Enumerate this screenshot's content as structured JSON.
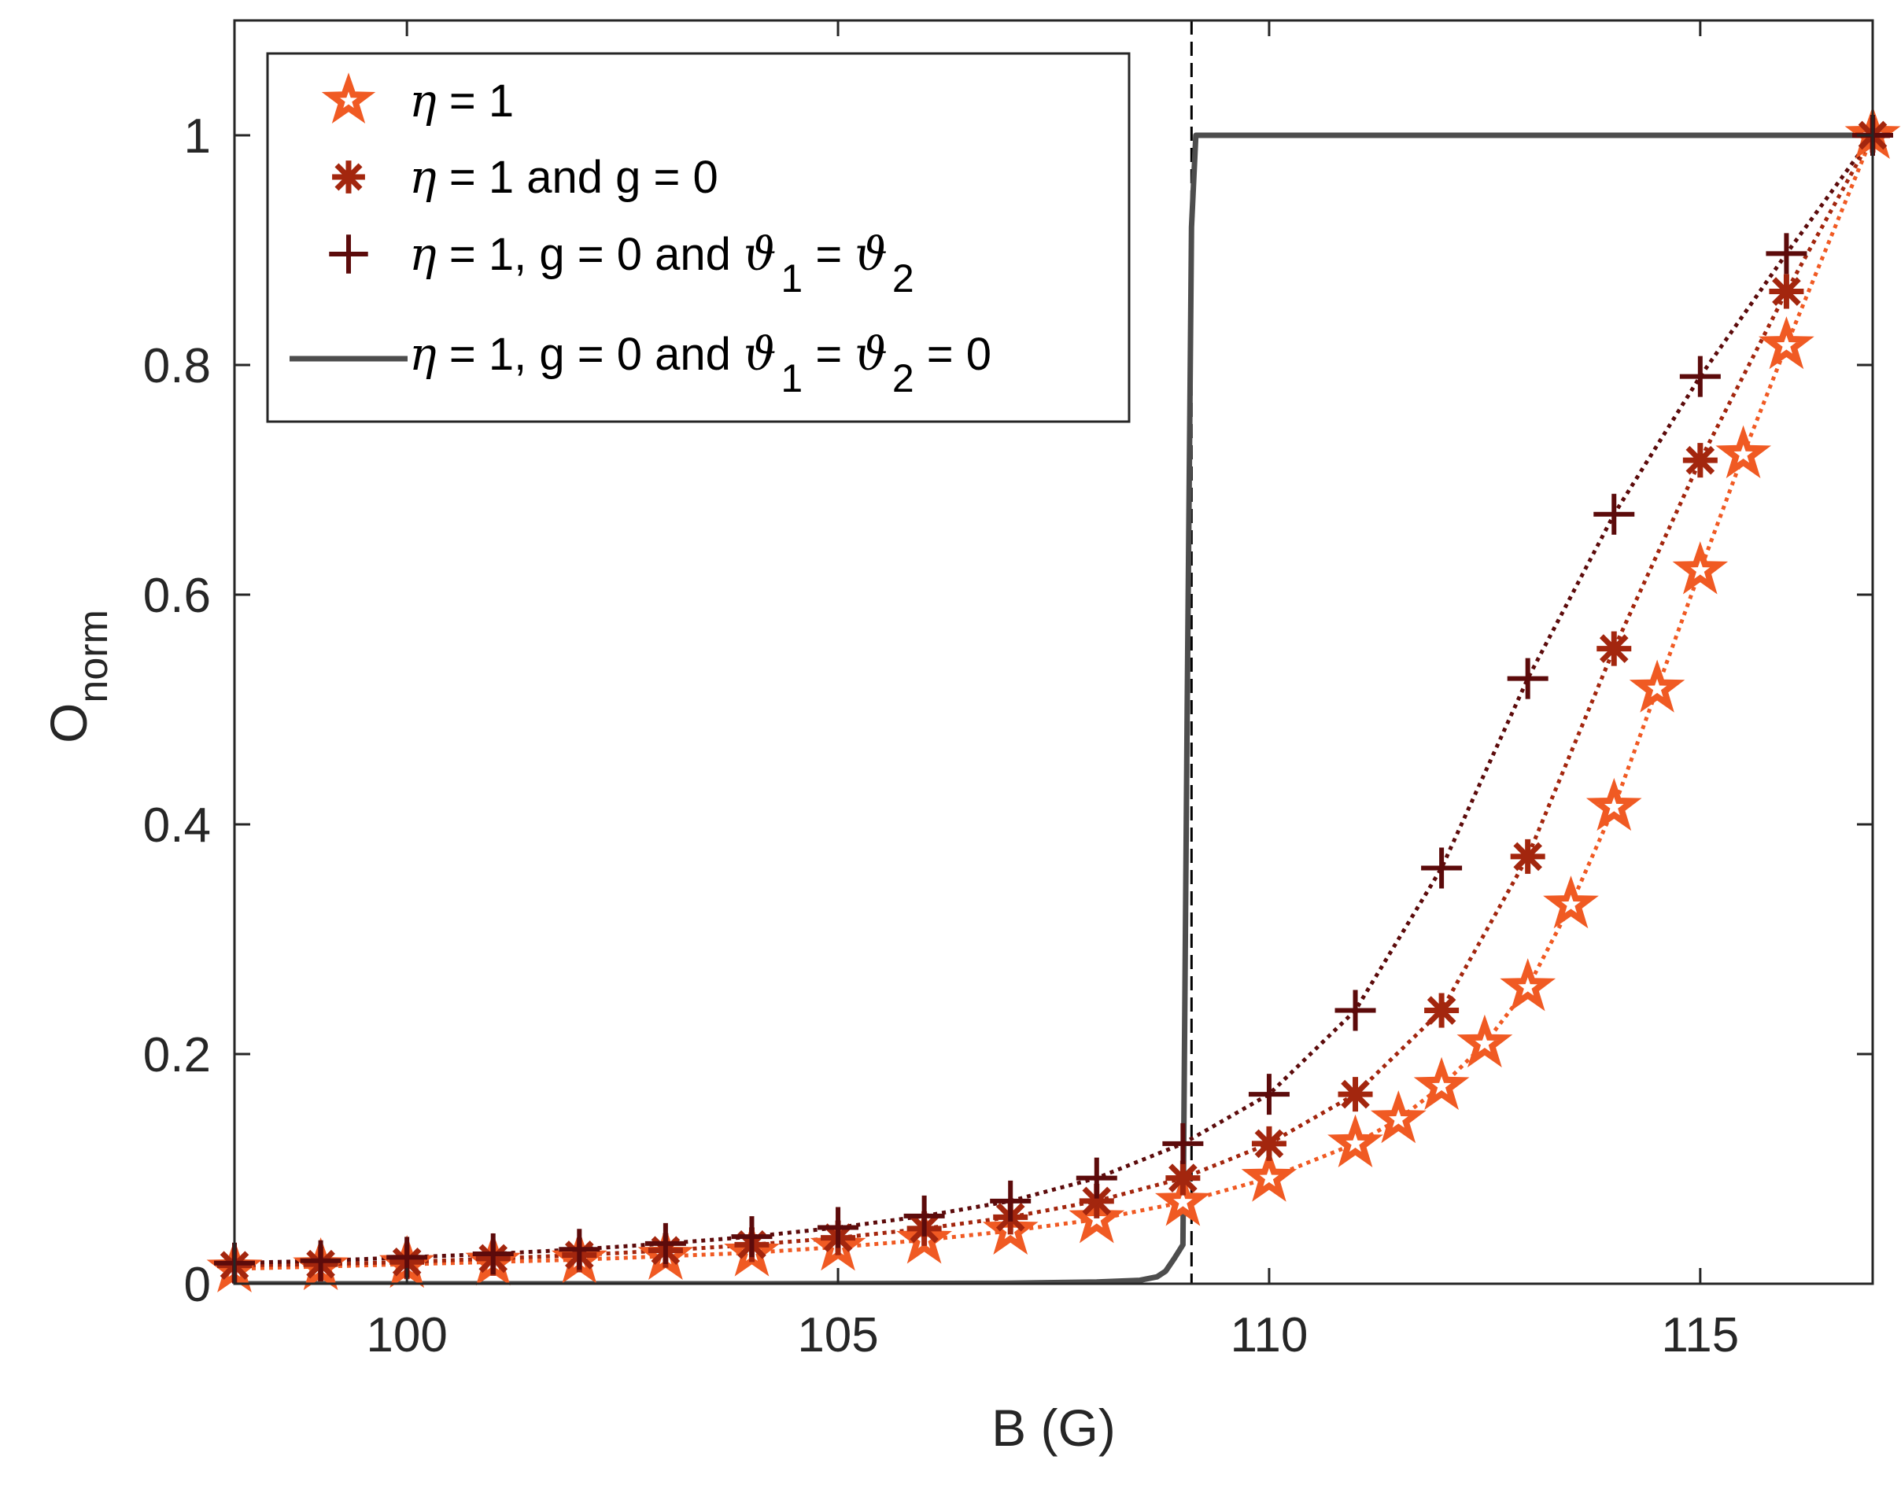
{
  "chart_data": {
    "type": "line",
    "title": "",
    "xlabel": "B (G)",
    "ylabel": {
      "main": "O",
      "subscript": "norm"
    },
    "xlim": [
      98,
      117
    ],
    "ylim": [
      0,
      1.1
    ],
    "xticks": [
      100,
      105,
      110,
      115
    ],
    "xtick_labels": [
      "100",
      "105",
      "110",
      "115"
    ],
    "yticks": [
      0,
      0.2,
      0.4,
      0.6,
      0.8,
      1
    ],
    "ytick_labels": [
      "0",
      "0.2",
      "0.4",
      "0.6",
      "0.8",
      "1"
    ],
    "grid": false,
    "legend_position": "top-left",
    "reference_line": {
      "x": 109.1,
      "style": "dashed",
      "color": "#000000"
    },
    "series": [
      {
        "name": "eta1",
        "label": "η = 1",
        "color": "#f05a23",
        "marker": "star",
        "line_style": "dotted",
        "x": [
          98,
          99,
          100,
          101,
          102,
          103,
          104,
          105,
          106,
          107,
          108,
          109,
          110,
          111,
          111.5,
          112,
          112.5,
          113,
          113.5,
          114,
          114.5,
          115,
          115.5,
          116,
          117
        ],
        "y": [
          0.013,
          0.015,
          0.017,
          0.019,
          0.021,
          0.024,
          0.027,
          0.032,
          0.038,
          0.046,
          0.056,
          0.071,
          0.092,
          0.122,
          0.143,
          0.172,
          0.209,
          0.258,
          0.33,
          0.415,
          0.518,
          0.621,
          0.722,
          0.817,
          1.0
        ]
      },
      {
        "name": "eta1-g0",
        "label": "η = 1 and g = 0",
        "color": "#a3260e",
        "marker": "asterisk",
        "line_style": "dotted",
        "x": [
          98,
          99,
          100,
          101,
          102,
          103,
          104,
          105,
          106,
          107,
          108,
          109,
          110,
          111,
          112,
          113,
          114,
          115,
          116,
          117
        ],
        "y": [
          0.016,
          0.017,
          0.019,
          0.022,
          0.025,
          0.029,
          0.034,
          0.04,
          0.048,
          0.058,
          0.072,
          0.092,
          0.122,
          0.165,
          0.238,
          0.372,
          0.553,
          0.717,
          0.864,
          1.0
        ]
      },
      {
        "name": "eta1-g0-theta-equal",
        "label": "η = 1, g = 0 and ϑ1 = ϑ2",
        "color": "#5c0b0b",
        "marker": "plus",
        "line_style": "dotted",
        "x": [
          98,
          99,
          100,
          101,
          102,
          103,
          104,
          105,
          106,
          107,
          108,
          109,
          110,
          111,
          112,
          113,
          114,
          115,
          116,
          117
        ],
        "y": [
          0.018,
          0.02,
          0.023,
          0.026,
          0.03,
          0.035,
          0.041,
          0.049,
          0.059,
          0.072,
          0.092,
          0.122,
          0.165,
          0.238,
          0.362,
          0.527,
          0.67,
          0.79,
          0.897,
          1.0
        ]
      },
      {
        "name": "eta1-g0-theta-zero",
        "label": "η = 1, g = 0 and ϑ1 = ϑ2 = 0",
        "color": "#4d4d4d",
        "marker": "none",
        "line_style": "solid",
        "x": [
          98,
          104,
          107,
          108,
          108.5,
          108.7,
          108.8,
          108.9,
          109.0,
          109.05,
          109.1,
          109.15,
          109.2,
          110,
          112,
          115,
          117
        ],
        "y": [
          0.0,
          0.0,
          0.0005,
          0.0015,
          0.003,
          0.006,
          0.011,
          0.022,
          0.034,
          0.5,
          0.92,
          1.0,
          1.0,
          1.0,
          1.0,
          1.0,
          1.0
        ]
      }
    ],
    "legend": [
      {
        "marker_name": "legend-star-icon",
        "parts": [
          "η",
          " = 1"
        ]
      },
      {
        "marker_name": "legend-asterisk-icon",
        "parts": [
          "η",
          " = 1 and g = 0"
        ]
      },
      {
        "marker_name": "legend-plus-icon",
        "parts": [
          "η",
          " = 1, g = 0 and ",
          "ϑ",
          "1",
          " = ",
          "ϑ",
          "2"
        ]
      },
      {
        "marker_name": "legend-solid-line-icon",
        "parts": [
          "η",
          " = 1, g = 0 and ",
          "ϑ",
          "1",
          " = ",
          "ϑ",
          "2",
          " = 0"
        ]
      }
    ]
  }
}
